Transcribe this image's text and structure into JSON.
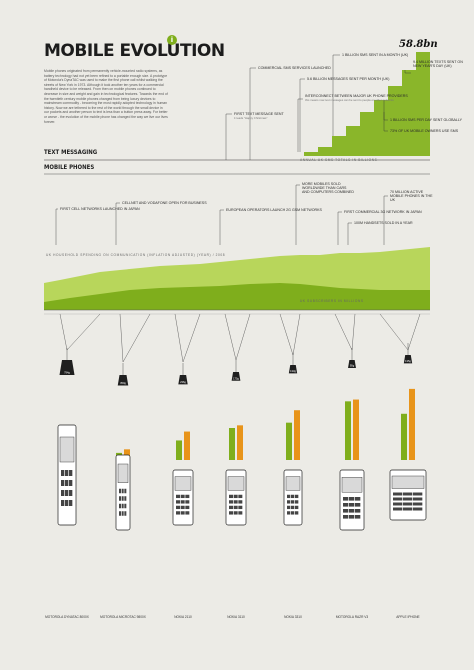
{
  "title": "MOBILE EVOLUTION",
  "badge": "i",
  "intro": "Mobile phones originated from permanently vehicle-mounted radio systems, as battery technology had not yet been refined to a portable enough size. A prototype of Motorola's DynaTAC was used to make the first phone call whilst walking the streets of New York in 1973. Although it took another ten years for a commercial handheld device to be released. From then on mobile phones continued to decrease in size and weight and gain in technological features. Towards the end of the twentieth century mobile phones changed from being luxury devices to mainstream commodity - becoming the most rapidly adopted technology in human history. Now we are tethered to the rest of the world through the small device in our pockets and another person to text is less than a button press away. For better or worse - the evolution of the mobile phone has changed the way we live our lives forever.",
  "sections": {
    "texting": "TEXT MESSAGING",
    "phones": "MOBILE PHONES"
  },
  "sms_total": "58.8bn",
  "sms_axis_label": "ANNUAL UK SMS TOTALS IN BILLIONS",
  "sms_annotations": [
    {
      "text": "COMMERCIAL SMS SERVICES LAUNCHED"
    },
    {
      "text": "1 BILLION SMS SENT IN A MONTH (UK)"
    },
    {
      "text": "5.6 BILLION MESSAGES SENT PER MONTH (UK)"
    },
    {
      "text": "INTERCONNECT BETWEEN MAJOR UK PHONE PROVIDERS",
      "note": "this means now text messages can be sent to people on other networks"
    },
    {
      "text": "FIRST TEXT MESSAGE SENT",
      "note": "it reads \"Happy Christmas\""
    },
    {
      "text": "1 BILLION SMS PER DAY SENT GLOBALLY"
    },
    {
      "text": "73% OF UK MOBILE OWNERS USE SMS"
    },
    {
      "text": "9.4 MILLION TEXTS SENT ON NEW YEAR'S DAY (UK)"
    }
  ],
  "phone_annotations": [
    {
      "text": "FIRST CELL NETWORKS LAUNCHED IN JAPAN"
    },
    {
      "text": "CELLNET AND VODAFONE OPEN FOR BUSINESS"
    },
    {
      "text": "EUROPEAN OPERATORS LAUNCH 2G GSM NETWORKS"
    },
    {
      "text": "MORE MOBILES SOLD WORLDWIDE THAN CARS AND COMPUTERS COMBINED"
    },
    {
      "text": "FIRST COMMERCIAL 3G NETWORK IN JAPAN"
    },
    {
      "text": "70 MILLION ACTIVE MOBILE PHONES IN THE UK"
    },
    {
      "text": "100M HANDSETS SOLD IN A YEAR"
    }
  ],
  "spending_label": "UK HOUSEHOLD SPENDING ON COMMUNICATION (INFLATION ADJUSTED) (YEAR) / 2008",
  "subscribers_label": "UK SUBSCRIBERS IN MILLIONS",
  "phones": [
    {
      "name": "MOTOROLA DYNATAC 8000X",
      "weight": "794g",
      "talk_time": 0.4,
      "battery": 0.6
    },
    {
      "name": "MOTOROLA MICROTAC 9800X",
      "weight": "350g",
      "talk_time": 0.8,
      "battery": 1.2
    },
    {
      "name": "NOKIA 2110",
      "weight": "236g",
      "talk_time": 2.2,
      "battery": 3.2
    },
    {
      "name": "NOKIA 3110",
      "weight": "175g",
      "talk_time": 3.6,
      "battery": 3.9
    },
    {
      "name": "NOKIA 3310",
      "weight": "133g",
      "talk_time": 4.2,
      "battery": 5.6
    },
    {
      "name": "MOTOROLA RAZR V3",
      "weight": "95g",
      "talk_time": 6.6,
      "battery": 6.8
    },
    {
      "name": "APPLE IPHONE",
      "weight": "135g",
      "talk_time": 5.2,
      "battery": 8.0
    }
  ],
  "colors": {
    "green": "#7fae1c",
    "light_green": "#b8d65b",
    "orange": "#e8941a",
    "dark": "#1f1f1f",
    "background": "#ecebe6"
  }
}
